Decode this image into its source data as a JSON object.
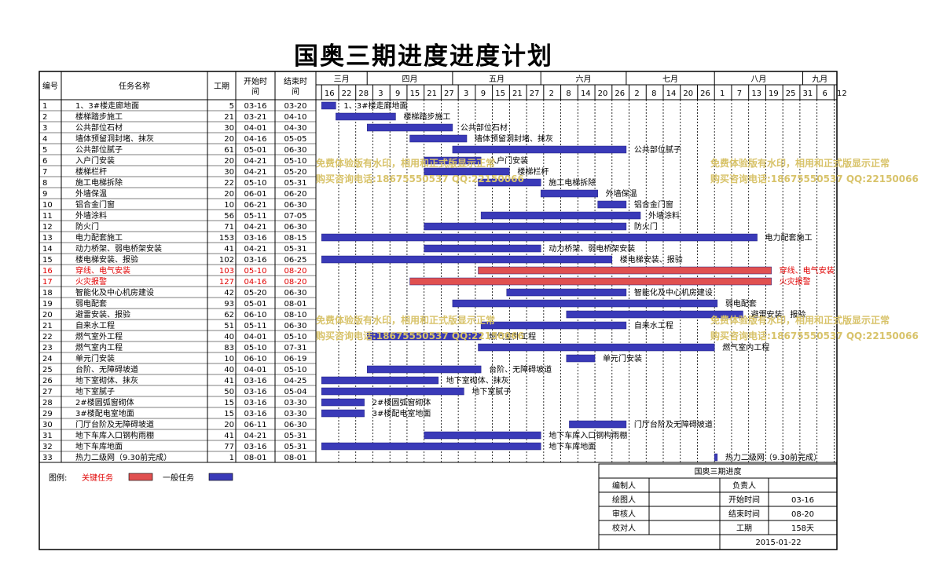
{
  "page": {
    "title": "国奥三期进度进度计划"
  },
  "table_headers": {
    "no": "编号",
    "task": "任务名称",
    "dur": "工期",
    "start": "开始时间",
    "end": "结束时间"
  },
  "months": [
    "三月",
    "四月",
    "五月",
    "六月",
    "七月",
    "八月",
    "九月"
  ],
  "watermark": {
    "line1": "免费体验版有水印，相用和正式版显示正常",
    "line2": "购买咨询电话:18675550537 QQ:22150066"
  },
  "legend": {
    "title": "图例:",
    "critical_label": "关键任务",
    "normal_label": "一般任务",
    "critical_color": "#e05050",
    "normal_color": "#3a3ab8"
  },
  "info_table": {
    "title": "国奥三期进度",
    "compiler_label": "编制人",
    "compiler": "",
    "owner_label": "负责人",
    "owner": "",
    "drawer_label": "绘图人",
    "drawer": "",
    "start_label": "开始时间",
    "start": "03-16",
    "reviewer_label": "审核人",
    "reviewer": "",
    "end_label": "结束时间",
    "end": "08-20",
    "checker_label": "校对人",
    "checker": "",
    "duration_label": "工期",
    "duration": "158天",
    "date": "2015-01-22"
  },
  "chart_data": {
    "type": "gantt",
    "year": 2015,
    "x_axis": {
      "range": [
        "03-14",
        "09-13"
      ],
      "tick_labels": [
        "16",
        "22",
        "28",
        "3",
        "9",
        "15",
        "21",
        "27",
        "3",
        "9",
        "15",
        "21",
        "27",
        "2",
        "8",
        "14",
        "20",
        "26",
        "2",
        "8",
        "14",
        "20",
        "26",
        "1",
        "7",
        "13",
        "19",
        "25",
        "31",
        "6",
        "12"
      ]
    },
    "tasks": [
      {
        "no": "1",
        "name": "1、3#楼走廊地面",
        "duration": "5",
        "start": "03-16",
        "end": "03-20",
        "critical": false
      },
      {
        "no": "2",
        "name": "楼梯踏步施工",
        "duration": "21",
        "start": "03-21",
        "end": "04-10",
        "critical": false
      },
      {
        "no": "3",
        "name": "公共部位石材",
        "duration": "30",
        "start": "04-01",
        "end": "04-30",
        "critical": false
      },
      {
        "no": "4",
        "name": "墙体预留洞封堵、抹灰",
        "duration": "20",
        "start": "04-16",
        "end": "05-05",
        "critical": false
      },
      {
        "no": "5",
        "name": "公共部位腻子",
        "duration": "61",
        "start": "05-01",
        "end": "06-30",
        "critical": false
      },
      {
        "no": "6",
        "name": "入户门安装",
        "duration": "20",
        "start": "04-21",
        "end": "05-10",
        "critical": false
      },
      {
        "no": "7",
        "name": "楼梯栏杆",
        "duration": "30",
        "start": "04-21",
        "end": "05-20",
        "critical": false
      },
      {
        "no": "8",
        "name": "施工电梯拆除",
        "duration": "22",
        "start": "05-10",
        "end": "05-31",
        "critical": false
      },
      {
        "no": "9",
        "name": "外墙保温",
        "duration": "20",
        "start": "06-01",
        "end": "06-20",
        "critical": false
      },
      {
        "no": "10",
        "name": "铝合金门窗",
        "duration": "10",
        "start": "06-21",
        "end": "06-30",
        "critical": false
      },
      {
        "no": "11",
        "name": "外墙涂料",
        "duration": "56",
        "start": "05-11",
        "end": "07-05",
        "critical": false
      },
      {
        "no": "12",
        "name": "防火门",
        "duration": "71",
        "start": "04-21",
        "end": "06-30",
        "critical": false
      },
      {
        "no": "13",
        "name": "电力配套施工",
        "duration": "153",
        "start": "03-16",
        "end": "08-15",
        "critical": false
      },
      {
        "no": "14",
        "name": "动力桥架、弱电桥架安装",
        "duration": "41",
        "start": "04-21",
        "end": "05-31",
        "critical": false
      },
      {
        "no": "15",
        "name": "楼电梯安装、报验",
        "duration": "102",
        "start": "03-16",
        "end": "06-25",
        "critical": false
      },
      {
        "no": "16",
        "name": "穿线、电气安装",
        "duration": "103",
        "start": "05-10",
        "end": "08-20",
        "critical": true
      },
      {
        "no": "17",
        "name": "火灾报警",
        "duration": "127",
        "start": "04-16",
        "end": "08-20",
        "critical": true
      },
      {
        "no": "18",
        "name": "智能化及中心机房建设",
        "duration": "42",
        "start": "05-20",
        "end": "06-30",
        "critical": false
      },
      {
        "no": "19",
        "name": "弱电配套",
        "duration": "93",
        "start": "05-01",
        "end": "08-01",
        "critical": false
      },
      {
        "no": "20",
        "name": "避雷安装、报验",
        "duration": "62",
        "start": "06-10",
        "end": "08-10",
        "critical": false
      },
      {
        "no": "21",
        "name": "自来水工程",
        "duration": "51",
        "start": "05-11",
        "end": "06-30",
        "critical": false
      },
      {
        "no": "22",
        "name": "燃气室外工程",
        "duration": "40",
        "start": "04-01",
        "end": "05-10",
        "critical": false
      },
      {
        "no": "23",
        "name": "燃气室内工程",
        "duration": "83",
        "start": "05-10",
        "end": "07-31",
        "critical": false
      },
      {
        "no": "24",
        "name": "单元门安装",
        "duration": "10",
        "start": "06-10",
        "end": "06-19",
        "critical": false
      },
      {
        "no": "25",
        "name": "台阶、无障碍坡道",
        "duration": "40",
        "start": "04-01",
        "end": "05-10",
        "critical": false
      },
      {
        "no": "26",
        "name": "地下室砌体、抹灰",
        "duration": "41",
        "start": "03-16",
        "end": "04-25",
        "critical": false
      },
      {
        "no": "27",
        "name": "地下室腻子",
        "duration": "50",
        "start": "03-16",
        "end": "05-04",
        "critical": false
      },
      {
        "no": "28",
        "name": "2#楼圆弧窗砌体",
        "duration": "15",
        "start": "03-16",
        "end": "03-30",
        "critical": false
      },
      {
        "no": "29",
        "name": "3#楼配电室地面",
        "duration": "15",
        "start": "03-16",
        "end": "03-30",
        "critical": false
      },
      {
        "no": "30",
        "name": "门厅台阶及无障碍坡道",
        "duration": "20",
        "start": "06-11",
        "end": "06-30",
        "critical": false
      },
      {
        "no": "31",
        "name": "地下车库入口钢构雨棚",
        "duration": "41",
        "start": "04-21",
        "end": "05-31",
        "critical": false
      },
      {
        "no": "32",
        "name": "地下车库地面",
        "duration": "77",
        "start": "03-16",
        "end": "05-31",
        "critical": false
      },
      {
        "no": "33",
        "name": "热力二级网（9.30前完成）",
        "duration": "1",
        "start": "08-01",
        "end": "08-01",
        "critical": false
      }
    ]
  }
}
